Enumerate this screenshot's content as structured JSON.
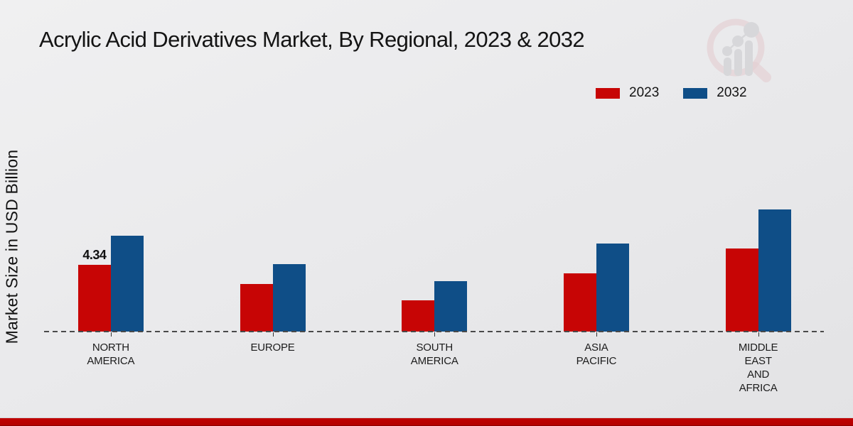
{
  "title": "Acrylic Acid Derivatives Market, By Regional, 2023 & 2032",
  "y_axis_label": "Market Size in USD Billion",
  "watermark_icon": "market-research-magnifier-bar-chart-logo",
  "colors": {
    "series_2023": "#c70505",
    "series_2032": "#0f4e87",
    "baseline": "#4a4a4a",
    "bottom_strip": "#c00000",
    "background": "#eaeaec"
  },
  "legend": {
    "position": "top-right",
    "items": [
      {
        "label": "2023",
        "color": "#c70505"
      },
      {
        "label": "2032",
        "color": "#0f4e87"
      }
    ]
  },
  "chart_data": {
    "type": "bar",
    "title": "Acrylic Acid Derivatives Market, By Regional, 2023 & 2032",
    "xlabel": "",
    "ylabel": "Market Size in USD Billion",
    "ylim": [
      0,
      9
    ],
    "grid": false,
    "legend_position": "top-right",
    "axis_style": "dashed-baseline-only",
    "categories": [
      "NORTH AMERICA",
      "EUROPE",
      "SOUTH AMERICA",
      "ASIA PACIFIC",
      "MIDDLE EAST AND AFRICA"
    ],
    "category_label_lines": [
      "NORTH\nAMERICA",
      "EUROPE",
      "SOUTH\nAMERICA",
      "ASIA\nPACIFIC",
      "MIDDLE\nEAST\nAND\nAFRICA"
    ],
    "series": [
      {
        "name": "2023",
        "color": "#c70505",
        "values": [
          4.34,
          3.08,
          2.04,
          3.78,
          5.42
        ]
      },
      {
        "name": "2032",
        "color": "#0f4e87",
        "values": [
          6.22,
          4.39,
          3.27,
          5.73,
          7.93
        ]
      }
    ],
    "data_labels": [
      {
        "series": "2023",
        "category": "NORTH AMERICA",
        "text": "4.34"
      }
    ]
  }
}
